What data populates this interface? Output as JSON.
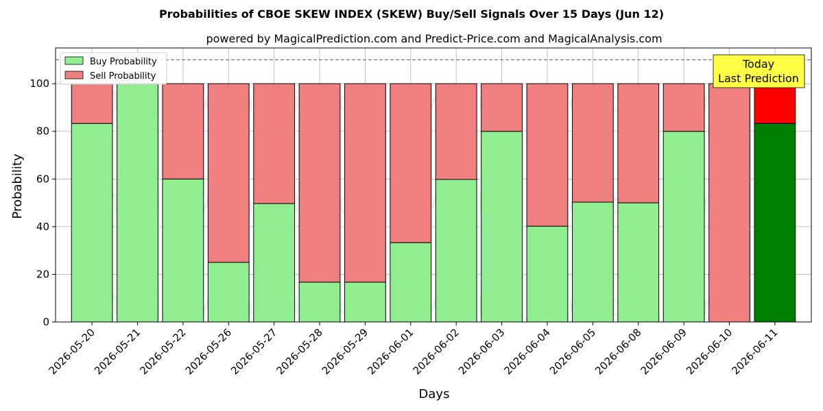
{
  "chart_data": {
    "type": "bar",
    "stacked": true,
    "title": "Probabilities of CBOE SKEW INDEX (SKEW) Buy/Sell Signals Over 15 Days (Jun 12)",
    "subtitle": "powered by MagicalPrediction.com and Predict-Price.com and MagicalAnalysis.com",
    "xlabel": "Days",
    "ylabel": "Probability",
    "ylim": [
      0,
      115
    ],
    "yticks": [
      0,
      20,
      40,
      60,
      80,
      100
    ],
    "reference_line": 110,
    "grid": true,
    "legend_placement": "top-left",
    "categories": [
      "2026-05-20",
      "2026-05-21",
      "2026-05-22",
      "2026-05-26",
      "2026-05-27",
      "2026-05-28",
      "2026-05-29",
      "2026-06-01",
      "2026-06-02",
      "2026-06-03",
      "2026-06-04",
      "2026-06-05",
      "2026-06-08",
      "2026-06-09",
      "2026-06-10",
      "2026-06-11"
    ],
    "series": [
      {
        "name": "Buy Probability",
        "color": "#90ee90",
        "values": [
          83.3,
          100,
          60,
          25,
          49.7,
          16.7,
          16.7,
          33.3,
          59.8,
          80,
          40.2,
          50.3,
          50,
          80,
          0,
          83.3
        ]
      },
      {
        "name": "Sell Probability",
        "color": "#f08080",
        "values": [
          16.7,
          0,
          40,
          75,
          50.3,
          83.3,
          83.3,
          66.7,
          40.2,
          20,
          59.8,
          49.7,
          50,
          20,
          100,
          16.7
        ]
      }
    ],
    "highlight": {
      "index": 15,
      "buy_color": "#008000",
      "sell_color": "#ff0000"
    },
    "annotation": {
      "lines": [
        "Today",
        "Last Prediction"
      ],
      "background": "#ffff44"
    },
    "watermarks": [
      "MagicalAnalysis.com",
      "MagicalPrediction.com"
    ]
  }
}
